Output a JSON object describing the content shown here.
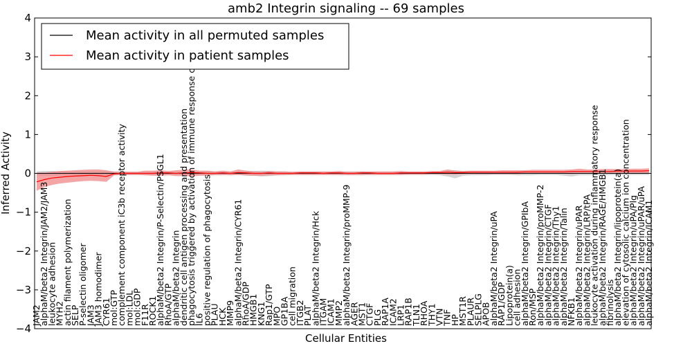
{
  "chart_data": {
    "type": "line",
    "title": "amb2 Integrin signaling -- 69 samples",
    "xlabel": "Cellular Entities",
    "ylabel": "Inferred Activity",
    "ylim": [
      -4,
      4
    ],
    "yticks": [
      -4,
      -3,
      -2,
      -1,
      0,
      1,
      2,
      3,
      4
    ],
    "ytick_labels": [
      "−4",
      "−3",
      "−2",
      "−1",
      "0",
      "1",
      "2",
      "3",
      "4"
    ],
    "legend_position": "top-left",
    "colors": {
      "permuted": "#000000",
      "patient": "#ff0000",
      "patient_band": "#f08080",
      "permuted_band": "#b0b0b0"
    },
    "categories": [
      "JAM2",
      "alphaM/beta2 Integrin/JAM2/JAM3",
      "leukocyte adhesion",
      "MYH2",
      "actin filament polymerization",
      "SELP",
      "P-selectin oligomer",
      "JAM3",
      "JAM3 homodimer",
      "CYR61",
      "mol:GTP",
      "complement component iC3b receptor activity",
      "mol:LDL",
      "mol:GDP",
      "F11R",
      "ROCK1",
      "alphaM/beta2 Integrin/P-Selectin/PSGL1",
      "RhoA/GTP",
      "alphaM/beta2 Integrin",
      "dendritic cell antigen processing and presentation",
      "phagocytosis triggered by activation of immune response cell surface",
      "IL6",
      "positive regulation of phagocytosis",
      "PLAU",
      "HCK",
      "MMP9",
      "alphaM/beta2 Integrin/CYR61",
      "RhoA/GDP",
      "HMGB1",
      "KNG1",
      "Rap1/GTP",
      "MPO",
      "GP1BA",
      "cell migration",
      "ITGB2",
      "PLAT",
      "alphaM/beta2 Integrin/Hck",
      "ITGAM",
      "ICAM1",
      "MMP2",
      "alphaM/beta2 Integrin/proMMP-9",
      "AGER",
      "MST1",
      "CTGF",
      "PLG",
      "RAP1A",
      "ICAM2",
      "LRP1",
      "RAP1B",
      "TLN1",
      "RHOA",
      "THY1",
      "VTN",
      "TNF",
      "HP",
      "MST1R",
      "PLAUR",
      "SELPLG",
      "APOB",
      "alphaM/beta2 Integrin/uPA",
      "RAP1/GDP",
      "Lipoprotein(a)",
      "cell adhesion",
      "alphaM/beta2 Integrin/GPIbA",
      "Ron/MSP",
      "alphaM/beta2 Integrin/proMMP-2",
      "alphaM/beta2 Integrin/CTGF",
      "alphaM/beta2 Integrin/Thy1",
      "alphaM/beta2 Integrin/Talin",
      "NFKB1",
      "alphaM/beta2 Integrin/uPAR",
      "alphaM/beta2 Integrin/LRP/tPA",
      "leukocyte activation during inflammatory response",
      "alphaM/beta2 Integrin/RAGE/HMGB1",
      "fibrinolysis",
      "alphaM/beta2 Integrin/lipoprotein(a)",
      "elevation of cytosolic calcium ion concentration",
      "alphaM/beta2 Integrin/uPA/Plg",
      "alphaM/beta2 Integrin/uPAR/uPA",
      "alphaM/beta2 Integrin/ICAM1"
    ],
    "series": [
      {
        "name": "Mean activity in all permuted samples",
        "values": [
          0,
          0,
          0,
          0,
          0,
          0,
          0,
          0,
          0,
          0,
          0,
          0,
          0,
          0,
          0,
          0,
          0,
          0,
          0,
          0,
          0,
          0,
          0,
          0,
          0,
          0,
          0,
          0,
          0,
          0,
          0,
          0,
          0,
          0,
          0,
          0,
          0,
          0,
          0,
          0,
          0,
          0,
          0,
          0,
          0,
          0,
          0,
          0,
          0,
          0,
          0,
          0,
          0,
          0,
          0,
          0,
          0,
          0,
          0,
          0,
          0,
          0,
          0,
          0,
          0,
          0,
          0,
          0,
          0,
          0,
          0,
          0,
          0,
          0,
          0,
          0,
          0,
          0,
          0,
          0
        ],
        "band_low": [
          -0.05,
          -0.06,
          -0.06,
          -0.05,
          -0.05,
          -0.05,
          -0.05,
          -0.05,
          -0.05,
          -0.05,
          -0.05,
          -0.05,
          -0.04,
          -0.04,
          -0.04,
          -0.04,
          -0.04,
          -0.04,
          -0.04,
          -0.04,
          -0.04,
          -0.05,
          -0.05,
          -0.05,
          -0.05,
          -0.04,
          -0.04,
          -0.06,
          -0.06,
          -0.08,
          -0.07,
          -0.05,
          -0.05,
          -0.04,
          -0.04,
          -0.04,
          -0.04,
          -0.04,
          -0.04,
          -0.04,
          -0.05,
          -0.05,
          -0.05,
          -0.04,
          -0.04,
          -0.04,
          -0.04,
          -0.04,
          -0.04,
          -0.04,
          -0.04,
          -0.04,
          -0.05,
          -0.08,
          -0.13,
          -0.06,
          -0.05,
          -0.05,
          -0.05,
          -0.04,
          -0.04,
          -0.04,
          -0.05,
          -0.05,
          -0.05,
          -0.04,
          -0.04,
          -0.04,
          -0.06,
          -0.08,
          -0.05,
          -0.05,
          -0.05,
          -0.05,
          -0.04,
          -0.04,
          -0.04,
          -0.04,
          -0.04,
          -0.04
        ],
        "band_high": [
          0.05,
          0.06,
          0.06,
          0.05,
          0.05,
          0.05,
          0.05,
          0.05,
          0.05,
          0.05,
          0.05,
          0.05,
          0.04,
          0.04,
          0.04,
          0.04,
          0.04,
          0.04,
          0.04,
          0.04,
          0.04,
          0.05,
          0.05,
          0.05,
          0.05,
          0.04,
          0.04,
          0.06,
          0.06,
          0.07,
          0.06,
          0.05,
          0.05,
          0.04,
          0.04,
          0.04,
          0.04,
          0.04,
          0.04,
          0.04,
          0.05,
          0.05,
          0.05,
          0.04,
          0.04,
          0.04,
          0.04,
          0.04,
          0.04,
          0.04,
          0.04,
          0.04,
          0.05,
          0.07,
          0.08,
          0.06,
          0.05,
          0.05,
          0.05,
          0.04,
          0.04,
          0.04,
          0.05,
          0.05,
          0.05,
          0.04,
          0.04,
          0.04,
          0.05,
          0.07,
          0.05,
          0.05,
          0.05,
          0.05,
          0.04,
          0.04,
          0.04,
          0.04,
          0.04,
          0.04
        ]
      },
      {
        "name": "Mean activity in patient samples",
        "values": [
          -0.22,
          -0.16,
          -0.12,
          -0.1,
          -0.08,
          -0.07,
          -0.06,
          -0.05,
          -0.06,
          -0.08,
          -0.01,
          0.0,
          0.0,
          0.0,
          0.0,
          0.0,
          0.01,
          0.01,
          0.0,
          0.01,
          0.02,
          0.01,
          0.0,
          0.0,
          0.01,
          0.0,
          0.02,
          0.01,
          0.0,
          0.0,
          0.01,
          0.0,
          0.0,
          0.0,
          0.01,
          0.01,
          0.01,
          0.0,
          0.01,
          0.01,
          0.0,
          0.0,
          0.01,
          0.01,
          0.0,
          0.0,
          0.0,
          0.01,
          0.01,
          0.01,
          0.01,
          0.02,
          0.02,
          0.03,
          0.02,
          0.02,
          0.03,
          0.03,
          0.03,
          0.03,
          0.03,
          0.03,
          0.03,
          0.04,
          0.04,
          0.04,
          0.04,
          0.04,
          0.04,
          0.05,
          0.05,
          0.05,
          0.05,
          0.05,
          0.05,
          0.06,
          0.06,
          0.06,
          0.06,
          0.07
        ],
        "band_low": [
          -0.45,
          -0.35,
          -0.3,
          -0.26,
          -0.24,
          -0.22,
          -0.2,
          -0.19,
          -0.2,
          -0.22,
          -0.05,
          -0.04,
          -0.04,
          -0.04,
          -0.05,
          -0.06,
          -0.06,
          -0.05,
          -0.07,
          -0.07,
          -0.08,
          -0.06,
          -0.06,
          -0.04,
          -0.04,
          -0.05,
          -0.04,
          -0.05,
          -0.06,
          -0.06,
          -0.05,
          -0.05,
          -0.04,
          -0.04,
          -0.04,
          -0.04,
          -0.04,
          -0.04,
          -0.04,
          -0.04,
          -0.04,
          -0.04,
          -0.04,
          -0.04,
          -0.04,
          -0.04,
          -0.04,
          -0.04,
          -0.03,
          -0.03,
          -0.03,
          -0.02,
          -0.02,
          -0.03,
          -0.03,
          -0.02,
          -0.02,
          -0.02,
          -0.02,
          -0.02,
          -0.02,
          -0.02,
          -0.02,
          -0.01,
          -0.01,
          -0.01,
          -0.01,
          -0.01,
          -0.01,
          -0.02,
          -0.01,
          0.0,
          0.0,
          0.0,
          0.0,
          0.0,
          0.0,
          0.0,
          0.0,
          0.0
        ],
        "band_high": [
          0.02,
          0.02,
          0.04,
          0.06,
          0.07,
          0.08,
          0.09,
          0.1,
          0.1,
          0.08,
          0.04,
          0.04,
          0.04,
          0.04,
          0.07,
          0.07,
          0.08,
          0.06,
          0.08,
          0.09,
          0.1,
          0.07,
          0.07,
          0.05,
          0.07,
          0.05,
          0.1,
          0.07,
          0.05,
          0.04,
          0.06,
          0.05,
          0.05,
          0.04,
          0.05,
          0.05,
          0.05,
          0.05,
          0.05,
          0.06,
          0.04,
          0.04,
          0.05,
          0.05,
          0.05,
          0.05,
          0.05,
          0.06,
          0.05,
          0.05,
          0.05,
          0.06,
          0.06,
          0.1,
          0.07,
          0.06,
          0.07,
          0.07,
          0.07,
          0.07,
          0.08,
          0.08,
          0.08,
          0.08,
          0.09,
          0.09,
          0.09,
          0.09,
          0.09,
          0.1,
          0.12,
          0.1,
          0.1,
          0.11,
          0.11,
          0.11,
          0.11,
          0.12,
          0.12,
          0.13
        ]
      }
    ]
  }
}
